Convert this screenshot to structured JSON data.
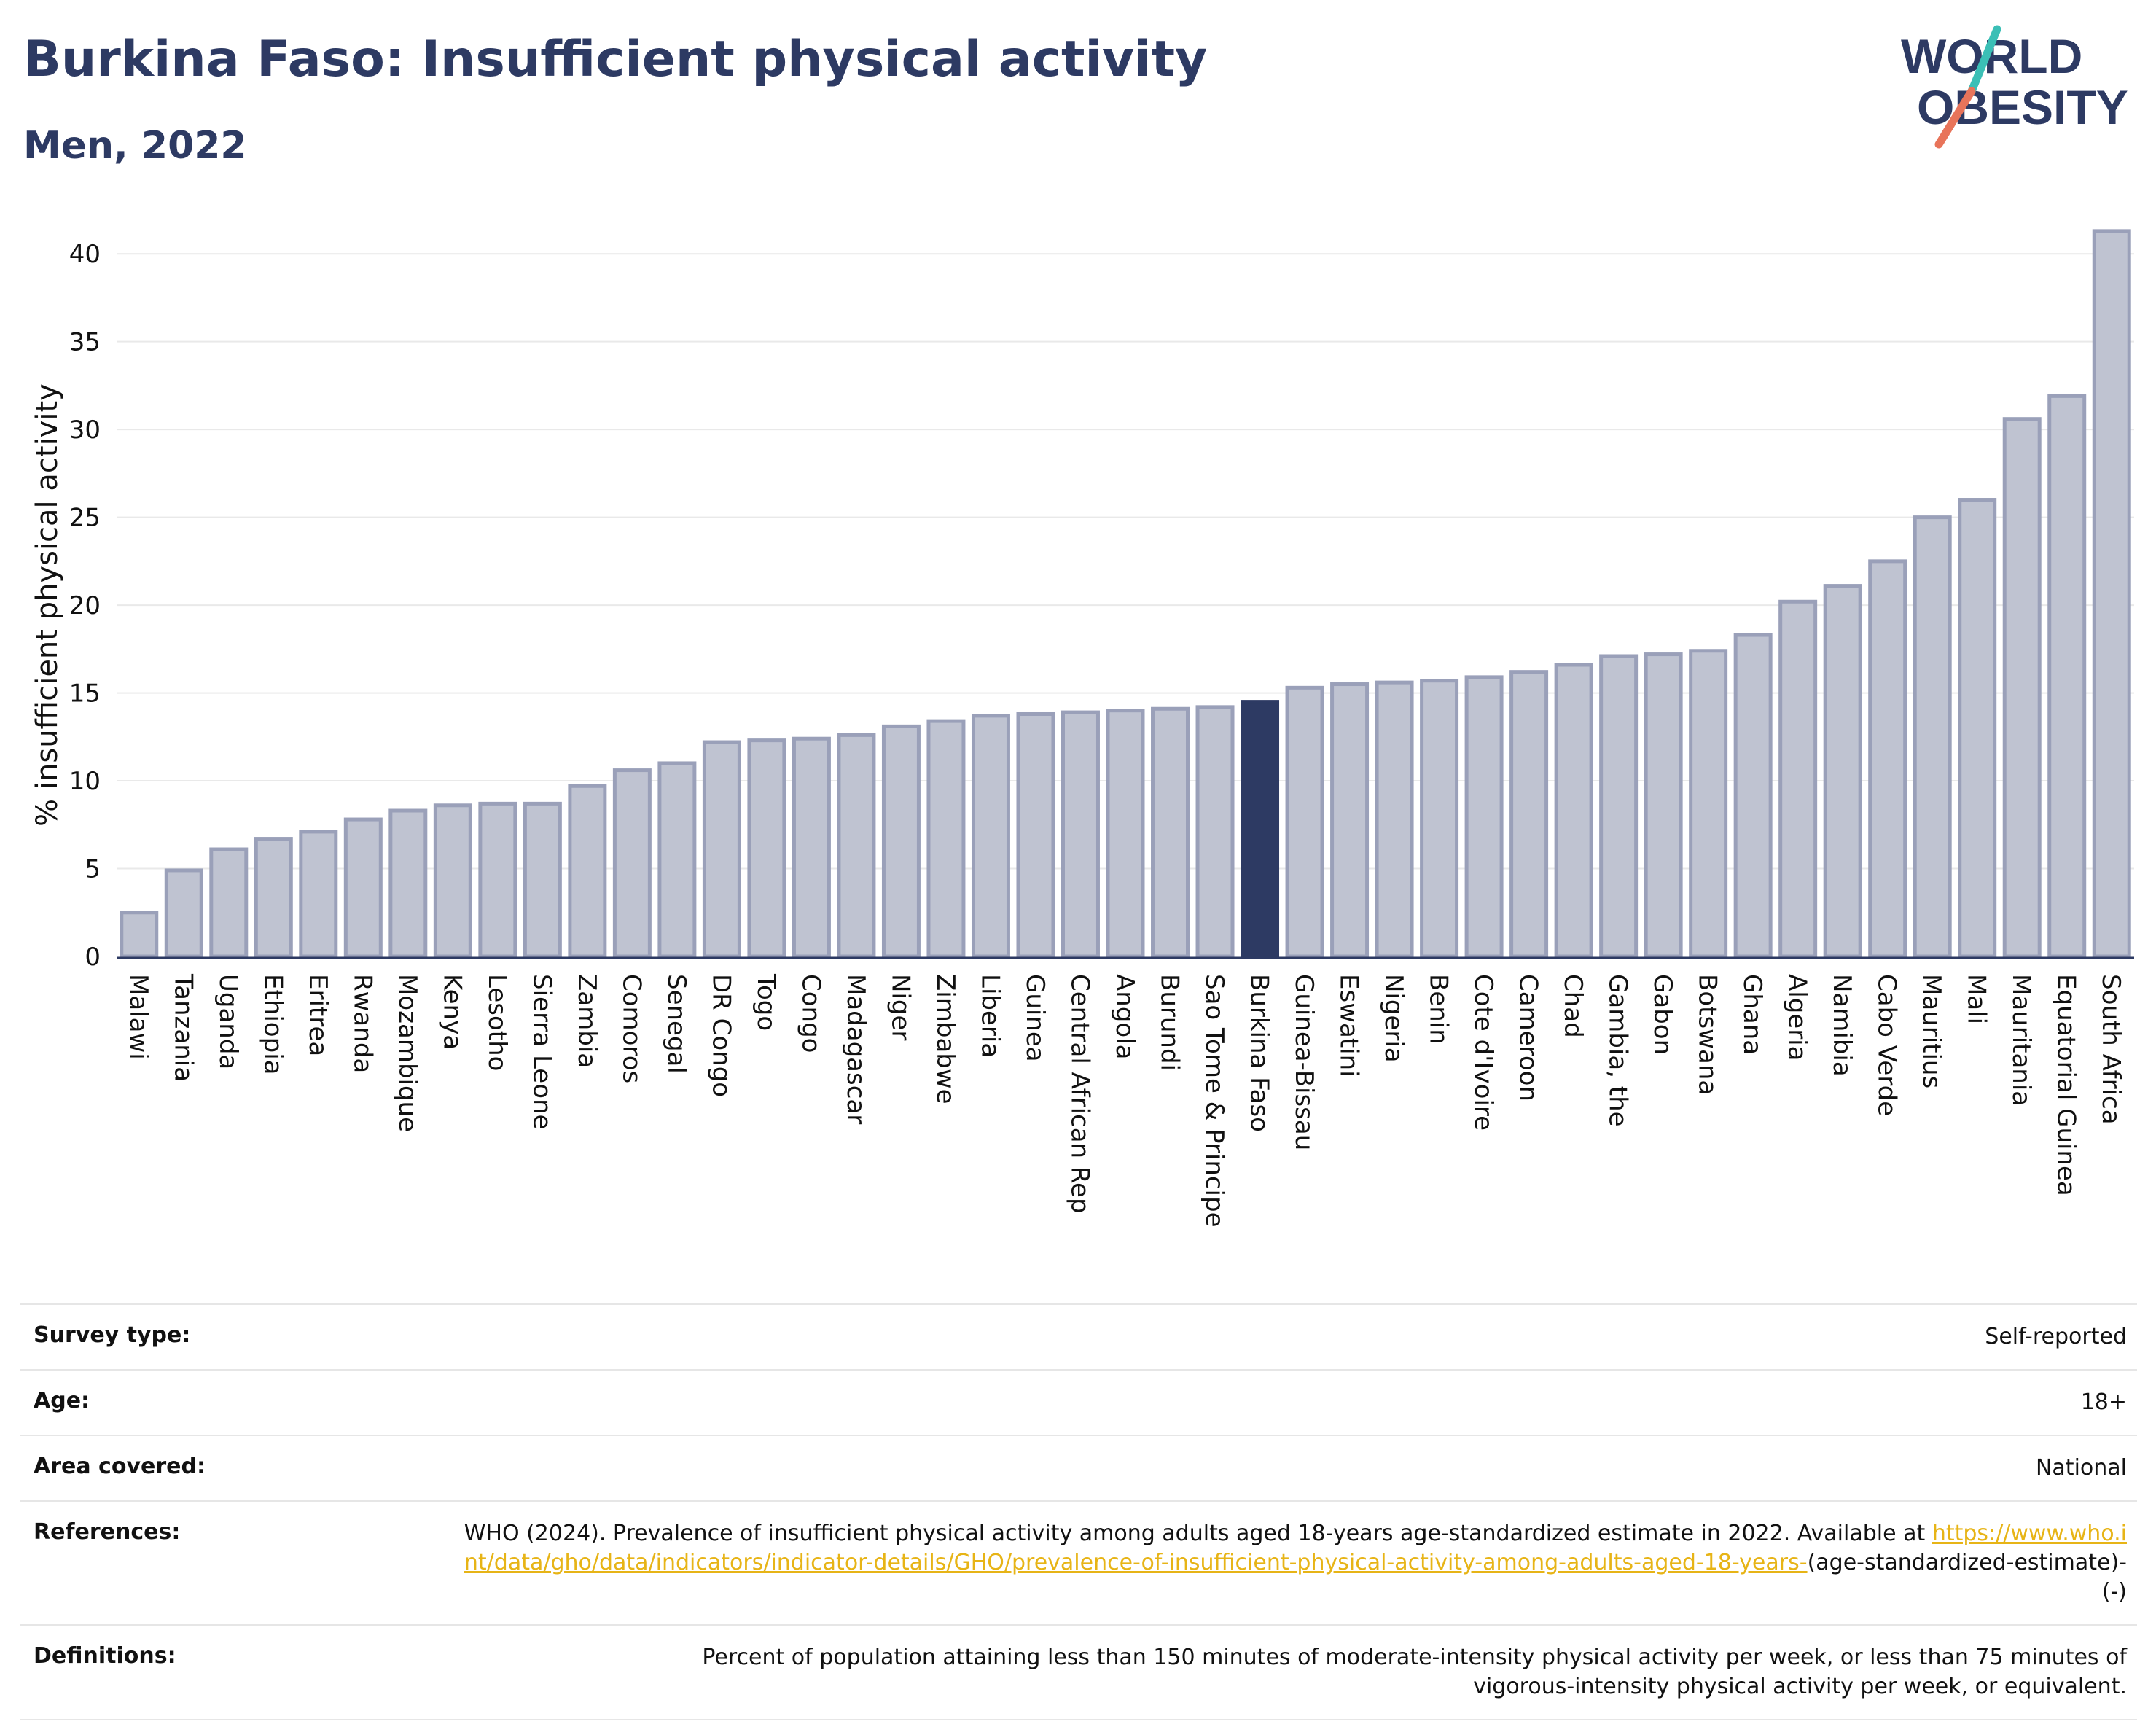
{
  "header": {
    "title": "Burkina Faso: Insufficient physical activity",
    "subtitle": "Men, 2022"
  },
  "logo": {
    "line1": "WORLD",
    "line2": "OBESITY",
    "colors": {
      "text": "#2d3a63",
      "accent_teal": "#3bbfb6",
      "accent_coral": "#e8745a"
    }
  },
  "chart_data": {
    "type": "bar",
    "ylabel": "% insufficient physical activity",
    "ylim": [
      0,
      42
    ],
    "yticks": [
      0,
      5,
      10,
      15,
      20,
      25,
      30,
      35,
      40
    ],
    "grid": true,
    "highlight": "Burkina Faso",
    "colors": {
      "bar": "#bfc3d1",
      "bar_edge": "#9aa0b9",
      "highlight": "#2d3a63",
      "grid": "#e9e9e9",
      "axis": "#2d3a63"
    },
    "categories": [
      "Malawi",
      "Tanzania",
      "Uganda",
      "Ethiopia",
      "Eritrea",
      "Rwanda",
      "Mozambique",
      "Kenya",
      "Lesotho",
      "Sierra Leone",
      "Zambia",
      "Comoros",
      "Senegal",
      "DR Congo",
      "Togo",
      "Congo",
      "Madagascar",
      "Niger",
      "Zimbabwe",
      "Liberia",
      "Guinea",
      "Central African Rep",
      "Angola",
      "Burundi",
      "Sao Tome & Principe",
      "Burkina Faso",
      "Guinea-Bissau",
      "Eswatini",
      "Nigeria",
      "Benin",
      "Cote d'Ivoire",
      "Cameroon",
      "Chad",
      "Gambia, the",
      "Gabon",
      "Botswana",
      "Ghana",
      "Algeria",
      "Namibia",
      "Cabo Verde",
      "Mauritius",
      "Mali",
      "Mauritania",
      "Equatorial Guinea",
      "South Africa"
    ],
    "values": [
      2.5,
      4.9,
      6.1,
      6.7,
      7.1,
      7.8,
      8.3,
      8.6,
      8.7,
      8.7,
      9.7,
      10.6,
      11.0,
      12.2,
      12.3,
      12.4,
      12.6,
      13.1,
      13.4,
      13.7,
      13.8,
      13.9,
      14.0,
      14.1,
      14.2,
      14.5,
      15.3,
      15.5,
      15.6,
      15.7,
      15.9,
      16.2,
      16.6,
      17.1,
      17.2,
      17.4,
      18.3,
      20.2,
      21.1,
      22.5,
      25.0,
      26.0,
      30.6,
      31.9,
      41.3
    ]
  },
  "meta": {
    "rows": [
      {
        "label": "Survey type:",
        "value": "Self-reported"
      },
      {
        "label": "Age:",
        "value": "18+"
      },
      {
        "label": "Area covered:",
        "value": "National"
      }
    ],
    "references": {
      "label": "References:",
      "text": "WHO (2024). Prevalence of insufficient physical activity among adults aged 18-years age-standardized estimate in 2022. Available at",
      "link": "https://www.who.int/data/gho/data/indicators/indicator-details/GHO/prevalence-of-insufficient-physical-activity-among-adults-aged-18-years-",
      "suffix": "(age-standardized-estimate)-(-)"
    },
    "definitions": {
      "label": "Definitions:",
      "value": "Percent of population attaining less than 150 minutes of moderate-intensity physical activity per week, or less than 75 minutes of vigorous-intensity physical activity per week, or equivalent."
    }
  }
}
